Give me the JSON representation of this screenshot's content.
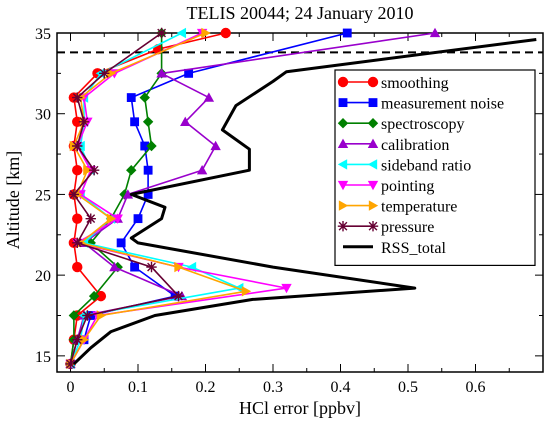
{
  "chart_data": {
    "type": "line",
    "title": "TELIS 20044; 24 January 2010",
    "xlabel": "HCl error [ppbv]",
    "ylabel": "Altitude [km]",
    "xlim": [
      -0.02,
      0.7
    ],
    "ylim": [
      14,
      35
    ],
    "x_ticks": [
      0,
      0.1,
      0.2,
      0.3,
      0.4,
      0.5,
      0.6
    ],
    "x_tick_labels": [
      "0",
      "0.1",
      "0.2",
      "0.3",
      "0.4",
      "0.5",
      "0.6"
    ],
    "y_ticks": [
      15,
      20,
      25,
      30,
      35
    ],
    "y_tick_labels": [
      "15",
      "20",
      "25",
      "30",
      "35"
    ],
    "grid": false,
    "legend_position": "right",
    "reference_lines": [
      {
        "type": "horizontal",
        "style": "dashed",
        "color": "#000000",
        "y": 33.8
      }
    ],
    "series": [
      {
        "name": "smoothing",
        "color": "#ff0000",
        "marker": "circle",
        "filled": true,
        "points": [
          [
            0.0,
            14.5
          ],
          [
            0.005,
            16
          ],
          [
            0.01,
            17.5
          ],
          [
            0.045,
            18.7
          ],
          [
            0.01,
            20.5
          ],
          [
            0.005,
            22
          ],
          [
            0.01,
            23.5
          ],
          [
            0.005,
            25
          ],
          [
            0.01,
            26.5
          ],
          [
            0.005,
            28
          ],
          [
            0.01,
            29.5
          ],
          [
            0.005,
            31
          ],
          [
            0.04,
            32.5
          ],
          [
            0.13,
            34
          ],
          [
            0.23,
            35
          ]
        ]
      },
      {
        "name": "measurement noise",
        "color": "#0000ff",
        "marker": "square",
        "filled": true,
        "points": [
          [
            0.0,
            14.5
          ],
          [
            0.02,
            16
          ],
          [
            0.03,
            17.5
          ],
          [
            0.155,
            18.7
          ],
          [
            0.095,
            20.5
          ],
          [
            0.075,
            22
          ],
          [
            0.1,
            23.5
          ],
          [
            0.115,
            25
          ],
          [
            0.115,
            26.5
          ],
          [
            0.11,
            28
          ],
          [
            0.095,
            29.5
          ],
          [
            0.09,
            31
          ],
          [
            0.175,
            32.5
          ],
          [
            0.41,
            35
          ]
        ]
      },
      {
        "name": "spectroscopy",
        "color": "#008000",
        "marker": "diamond",
        "filled": true,
        "points": [
          [
            0.0,
            14.5
          ],
          [
            0.005,
            16
          ],
          [
            0.005,
            17.5
          ],
          [
            0.035,
            18.7
          ],
          [
            0.07,
            20.5
          ],
          [
            0.03,
            22
          ],
          [
            0.06,
            23.5
          ],
          [
            0.08,
            25
          ],
          [
            0.09,
            26.5
          ],
          [
            0.12,
            28
          ],
          [
            0.115,
            29.5
          ],
          [
            0.11,
            31
          ],
          [
            0.135,
            32.5
          ],
          [
            0.135,
            35
          ]
        ]
      },
      {
        "name": "calibration",
        "color": "#9900cc",
        "marker": "triangle-up",
        "filled": true,
        "points": [
          [
            0.0,
            14.5
          ],
          [
            0.01,
            16
          ],
          [
            0.02,
            17.5
          ],
          [
            0.165,
            18.7
          ],
          [
            0.065,
            20.5
          ],
          [
            0.02,
            22
          ],
          [
            0.07,
            23.5
          ],
          [
            0.085,
            25
          ],
          [
            0.195,
            26.5
          ],
          [
            0.215,
            28
          ],
          [
            0.17,
            29.5
          ],
          [
            0.205,
            31
          ],
          [
            0.135,
            32.5
          ],
          [
            0.54,
            35
          ]
        ]
      },
      {
        "name": "sideband ratio",
        "color": "#00ffff",
        "marker": "triangle-left",
        "filled": true,
        "points": [
          [
            0.0,
            14.5
          ],
          [
            0.015,
            16
          ],
          [
            0.02,
            17.5
          ],
          [
            0.25,
            19.2
          ],
          [
            0.18,
            20.5
          ],
          [
            0.02,
            22
          ],
          [
            0.06,
            23.5
          ],
          [
            0.015,
            25
          ],
          [
            0.03,
            26.5
          ],
          [
            0.015,
            28
          ],
          [
            0.02,
            29.5
          ],
          [
            0.02,
            31
          ],
          [
            0.045,
            32.5
          ],
          [
            0.165,
            35
          ]
        ]
      },
      {
        "name": "pointing",
        "color": "#ff00ff",
        "marker": "triangle-down",
        "filled": true,
        "points": [
          [
            0.0,
            14.5
          ],
          [
            0.02,
            16
          ],
          [
            0.04,
            17.5
          ],
          [
            0.32,
            19.2
          ],
          [
            0.16,
            20.5
          ],
          [
            0.01,
            22
          ],
          [
            0.07,
            23.5
          ],
          [
            0.015,
            25
          ],
          [
            0.03,
            26.5
          ],
          [
            0.01,
            28
          ],
          [
            0.025,
            29.5
          ],
          [
            0.02,
            31
          ],
          [
            0.065,
            32.5
          ],
          [
            0.195,
            35
          ]
        ]
      },
      {
        "name": "temperature",
        "color": "#ffa500",
        "marker": "triangle-right",
        "filled": true,
        "points": [
          [
            0.0,
            14.5
          ],
          [
            0.02,
            16
          ],
          [
            0.045,
            17.5
          ],
          [
            0.26,
            19
          ],
          [
            0.16,
            20.5
          ],
          [
            0.015,
            22
          ],
          [
            0.06,
            23.5
          ],
          [
            0.01,
            25
          ],
          [
            0.025,
            26.5
          ],
          [
            0.005,
            28
          ],
          [
            0.02,
            29.5
          ],
          [
            0.015,
            31
          ],
          [
            0.06,
            32.5
          ],
          [
            0.2,
            35
          ]
        ]
      },
      {
        "name": "pressure",
        "color": "#660033",
        "marker": "star",
        "filled": false,
        "points": [
          [
            0.0,
            14.5
          ],
          [
            0.01,
            16
          ],
          [
            0.025,
            17.5
          ],
          [
            0.16,
            18.7
          ],
          [
            0.12,
            20.5
          ],
          [
            0.01,
            22
          ],
          [
            0.03,
            23.5
          ],
          [
            0.005,
            25
          ],
          [
            0.035,
            26.5
          ],
          [
            0.01,
            28
          ],
          [
            0.02,
            29.5
          ],
          [
            0.01,
            31
          ],
          [
            0.05,
            32.5
          ],
          [
            0.135,
            35
          ]
        ]
      },
      {
        "name": "RSS_total",
        "color": "#000000",
        "marker": "none",
        "filled": false,
        "line_width": 3,
        "points": [
          [
            0.005,
            14.5
          ],
          [
            0.03,
            15.5
          ],
          [
            0.06,
            16.5
          ],
          [
            0.125,
            17.5
          ],
          [
            0.27,
            18.5
          ],
          [
            0.51,
            19.2
          ],
          [
            0.3,
            20.5
          ],
          [
            0.1,
            22
          ],
          [
            0.09,
            22.3
          ],
          [
            0.135,
            23.5
          ],
          [
            0.14,
            24.2
          ],
          [
            0.09,
            25
          ],
          [
            0.265,
            26.5
          ],
          [
            0.265,
            27.8
          ],
          [
            0.225,
            29
          ],
          [
            0.245,
            30.5
          ],
          [
            0.3,
            32
          ],
          [
            0.32,
            32.6
          ],
          [
            0.69,
            34.6
          ]
        ]
      }
    ]
  }
}
